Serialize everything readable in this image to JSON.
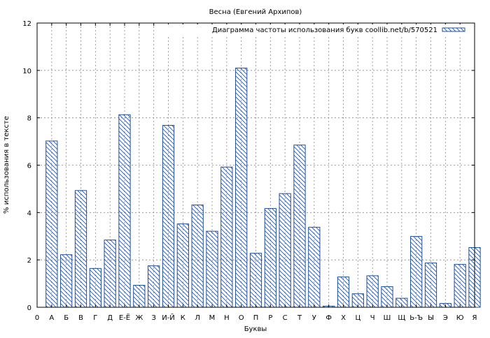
{
  "chart_data": {
    "type": "bar",
    "title": "Весна (Евгений Архипов)",
    "xlabel": "Буквы",
    "ylabel": "% использования в тексте",
    "legend": "top-right",
    "grid": true,
    "ylim": [
      0,
      12
    ],
    "yticks": [
      0,
      2,
      4,
      6,
      8,
      10,
      12
    ],
    "x_origin_label": "0",
    "categories": [
      "А",
      "Б",
      "В",
      "Г",
      "Д",
      "Е-Ё",
      "Ж",
      "З",
      "И-Й",
      "К",
      "Л",
      "М",
      "Н",
      "О",
      "П",
      "Р",
      "С",
      "Т",
      "У",
      "Ф",
      "Х",
      "Ц",
      "Ч",
      "Ш",
      "Щ",
      "Ь-Ъ",
      "Ы",
      "Э",
      "Ю",
      "Я"
    ],
    "series": [
      {
        "name": "Диаграмма частоты использования букв coollib.net/b/570521",
        "color": "#1f4e9c",
        "values": [
          7.02,
          2.22,
          4.93,
          1.64,
          2.84,
          8.13,
          0.93,
          1.75,
          7.68,
          3.52,
          4.32,
          3.21,
          5.92,
          10.1,
          2.28,
          4.17,
          4.8,
          6.85,
          3.38,
          0.05,
          1.28,
          0.57,
          1.33,
          0.87,
          0.38,
          2.99,
          1.87,
          0.16,
          1.81,
          2.52
        ]
      }
    ]
  }
}
